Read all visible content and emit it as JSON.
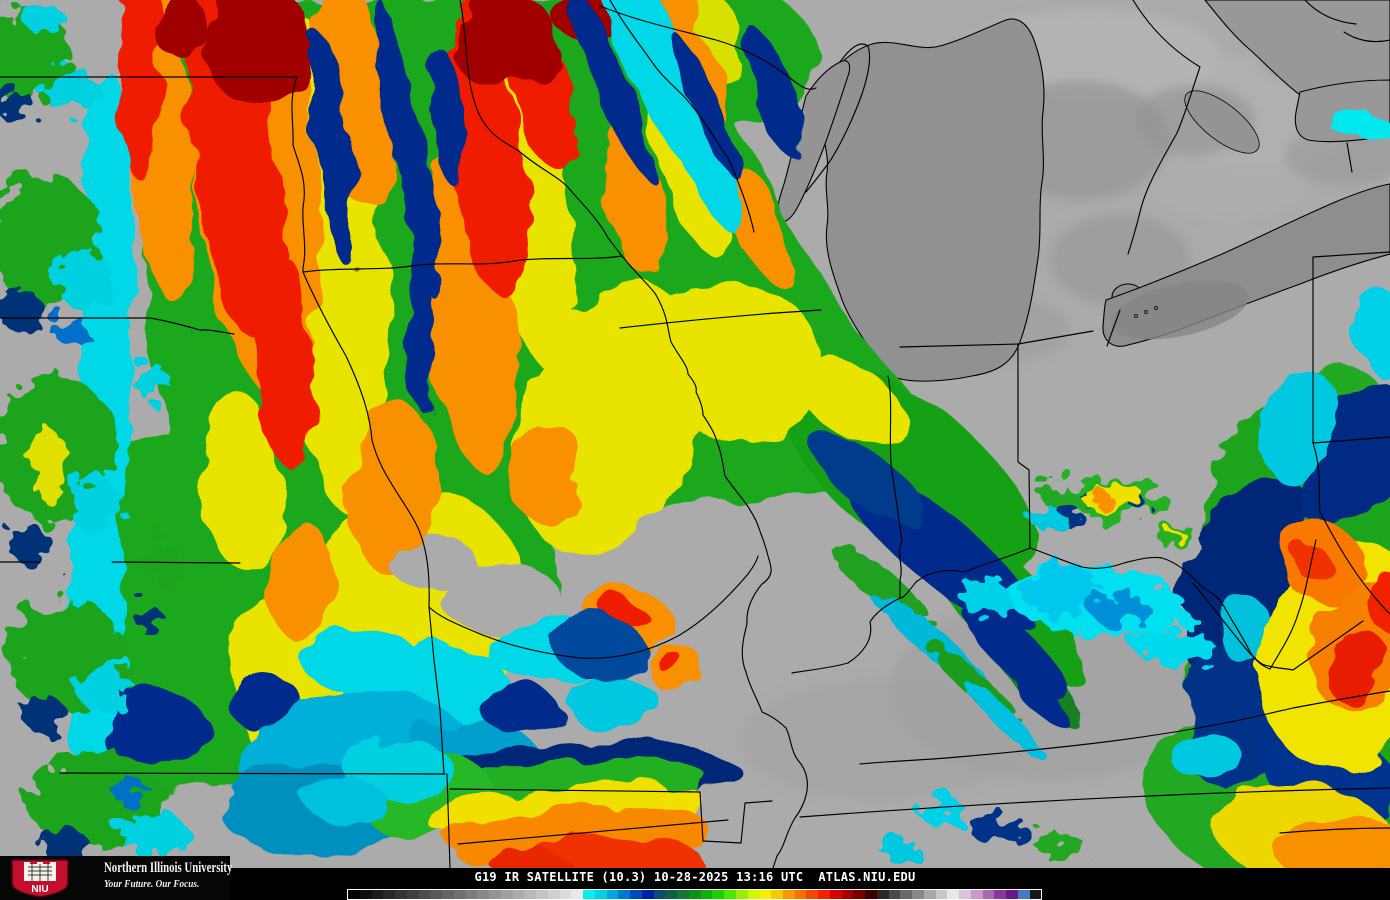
{
  "branding": {
    "university": "Northern Illinois University",
    "tagline": "Your Future. Our Focus.",
    "logo_monogram": "NIU",
    "niu_red": "#c30e2e"
  },
  "caption": {
    "full": "G19 IR SATELLITE (10.3) 10-28-2025 13:16 UTC  ATLAS.NIU.EDU",
    "satellite": "G19",
    "product": "IR SATELLITE",
    "band": "10.3",
    "date": "10-28-2025",
    "time_utc": "13:16",
    "site": "ATLAS.NIU.EDU"
  },
  "palette": {
    "land_gray": "#ababab",
    "lake_gray": "#8f8f8f",
    "border_line": "#000000",
    "footer_bg": "#000000",
    "footer_text": "#ffffff",
    "colorbar_border": "#ffffff"
  },
  "colorbar": {
    "segments": [
      "#040404",
      "#101010",
      "#1c1c1c",
      "#282828",
      "#343434",
      "#404040",
      "#4c4c4c",
      "#585858",
      "#646464",
      "#707070",
      "#7c7c7c",
      "#888888",
      "#949494",
      "#a0a0a0",
      "#acacac",
      "#b8b8b8",
      "#c4c4c4",
      "#d0d0d0",
      "#dcdcdc",
      "#e8e8e8",
      "#00f0f0",
      "#00d0e8",
      "#00a8e0",
      "#0078d0",
      "#0048c0",
      "#0020a8",
      "#104878",
      "#106048",
      "#107830",
      "#109018",
      "#10b008",
      "#18d000",
      "#48e800",
      "#98f000",
      "#d0f800",
      "#f8f000",
      "#f8c800",
      "#f89800",
      "#f87000",
      "#f84800",
      "#f82000",
      "#d80000",
      "#a80000",
      "#780000",
      "#400000",
      "#282828",
      "#484848",
      "#686868",
      "#888888",
      "#a8a8a8",
      "#c8c8c8",
      "#e8e8e8",
      "#dcc0dc",
      "#c898c8",
      "#a868b0",
      "#8838a0",
      "#681888",
      "#4878c8",
      "#181818"
    ]
  }
}
